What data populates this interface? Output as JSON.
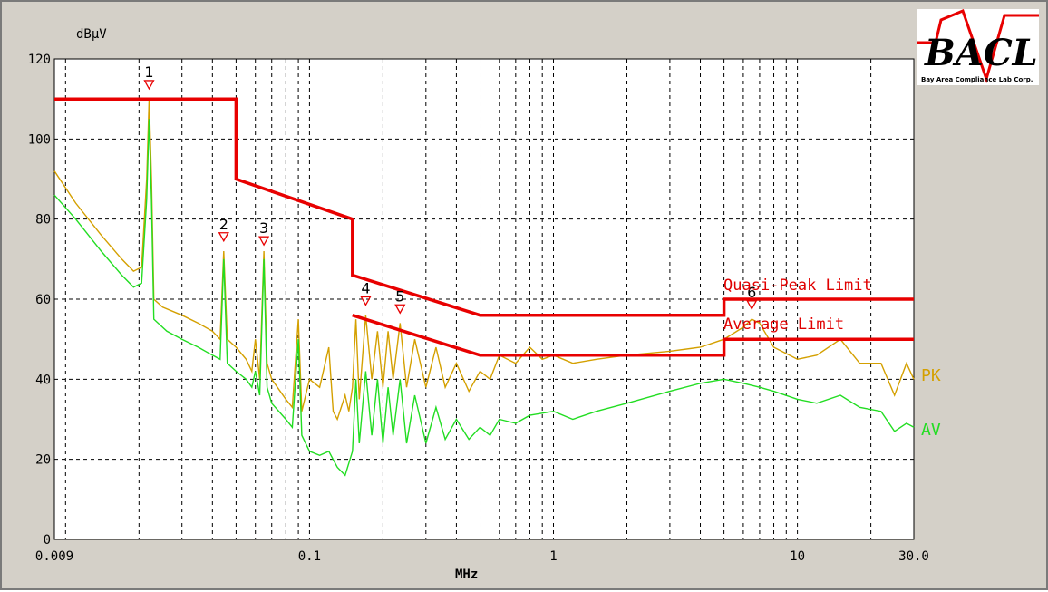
{
  "chart_data": {
    "type": "line",
    "ylabel": "dBμV",
    "xlabel": "MHz",
    "xscale": "log",
    "xlim": [
      0.009,
      30.0
    ],
    "ylim": [
      0,
      120
    ],
    "grid": true,
    "y_ticks": [
      "0",
      "20",
      "40",
      "60",
      "80",
      "100",
      "120"
    ],
    "x_ticks": [
      {
        "value": 0.009,
        "label": "0.009"
      },
      {
        "value": 0.1,
        "label": "0.1"
      },
      {
        "value": 1,
        "label": "1"
      },
      {
        "value": 10,
        "label": "10"
      },
      {
        "value": 30.0,
        "label": "30.0"
      }
    ],
    "series": [
      {
        "name": "Quasi-Peak Limit",
        "color": "#e80000",
        "points": [
          [
            0.009,
            110
          ],
          [
            0.05,
            110
          ],
          [
            0.05,
            90
          ],
          [
            0.15,
            80
          ],
          [
            0.15,
            66
          ],
          [
            0.5,
            56
          ],
          [
            5,
            56
          ],
          [
            5,
            60
          ],
          [
            30,
            60
          ]
        ]
      },
      {
        "name": "Average Limit",
        "color": "#e80000",
        "points": [
          [
            0.15,
            56
          ],
          [
            0.5,
            46
          ],
          [
            5,
            46
          ],
          [
            5,
            50
          ],
          [
            30,
            50
          ]
        ]
      },
      {
        "name": "PK",
        "color": "#d4a000",
        "points": [
          [
            0.009,
            92
          ],
          [
            0.011,
            84
          ],
          [
            0.014,
            76
          ],
          [
            0.017,
            70
          ],
          [
            0.019,
            67
          ],
          [
            0.0205,
            68
          ],
          [
            0.0215,
            90
          ],
          [
            0.022,
            110
          ],
          [
            0.0225,
            90
          ],
          [
            0.023,
            60
          ],
          [
            0.025,
            58
          ],
          [
            0.03,
            56
          ],
          [
            0.035,
            54
          ],
          [
            0.04,
            52
          ],
          [
            0.043,
            50
          ],
          [
            0.0445,
            72
          ],
          [
            0.046,
            50
          ],
          [
            0.05,
            48
          ],
          [
            0.055,
            45
          ],
          [
            0.058,
            42
          ],
          [
            0.06,
            50
          ],
          [
            0.0625,
            40
          ],
          [
            0.065,
            72
          ],
          [
            0.067,
            44
          ],
          [
            0.07,
            40
          ],
          [
            0.08,
            35
          ],
          [
            0.085,
            33
          ],
          [
            0.09,
            55
          ],
          [
            0.093,
            32
          ],
          [
            0.1,
            40
          ],
          [
            0.11,
            38
          ],
          [
            0.12,
            48
          ],
          [
            0.125,
            32
          ],
          [
            0.13,
            30
          ],
          [
            0.14,
            36
          ],
          [
            0.145,
            32
          ],
          [
            0.15,
            38
          ],
          [
            0.155,
            55
          ],
          [
            0.16,
            35
          ],
          [
            0.17,
            56
          ],
          [
            0.18,
            40
          ],
          [
            0.19,
            52
          ],
          [
            0.2,
            38
          ],
          [
            0.21,
            52
          ],
          [
            0.22,
            40
          ],
          [
            0.235,
            54
          ],
          [
            0.25,
            38
          ],
          [
            0.27,
            50
          ],
          [
            0.3,
            38
          ],
          [
            0.33,
            48
          ],
          [
            0.36,
            38
          ],
          [
            0.4,
            44
          ],
          [
            0.45,
            37
          ],
          [
            0.5,
            42
          ],
          [
            0.55,
            40
          ],
          [
            0.6,
            46
          ],
          [
            0.7,
            44
          ],
          [
            0.8,
            48
          ],
          [
            0.9,
            45
          ],
          [
            1,
            46
          ],
          [
            1.2,
            44
          ],
          [
            1.5,
            45
          ],
          [
            2,
            46
          ],
          [
            3,
            47
          ],
          [
            4,
            48
          ],
          [
            5,
            50
          ],
          [
            6,
            53
          ],
          [
            6.5,
            55
          ],
          [
            7,
            54
          ],
          [
            8,
            48
          ],
          [
            10,
            45
          ],
          [
            12,
            46
          ],
          [
            15,
            50
          ],
          [
            18,
            44
          ],
          [
            22,
            44
          ],
          [
            25,
            36
          ],
          [
            28,
            44
          ],
          [
            30,
            40
          ]
        ]
      },
      {
        "name": "AV",
        "color": "#22dd22",
        "points": [
          [
            0.009,
            86
          ],
          [
            0.011,
            80
          ],
          [
            0.014,
            72
          ],
          [
            0.017,
            66
          ],
          [
            0.019,
            63
          ],
          [
            0.0205,
            64
          ],
          [
            0.0215,
            85
          ],
          [
            0.022,
            105
          ],
          [
            0.0225,
            85
          ],
          [
            0.023,
            55
          ],
          [
            0.026,
            52
          ],
          [
            0.03,
            50
          ],
          [
            0.035,
            48
          ],
          [
            0.04,
            46
          ],
          [
            0.043,
            45
          ],
          [
            0.0445,
            70
          ],
          [
            0.046,
            44
          ],
          [
            0.05,
            42
          ],
          [
            0.055,
            40
          ],
          [
            0.058,
            38
          ],
          [
            0.06,
            42
          ],
          [
            0.0625,
            36
          ],
          [
            0.065,
            70
          ],
          [
            0.067,
            38
          ],
          [
            0.07,
            34
          ],
          [
            0.08,
            30
          ],
          [
            0.085,
            28
          ],
          [
            0.09,
            50
          ],
          [
            0.093,
            26
          ],
          [
            0.1,
            22
          ],
          [
            0.11,
            21
          ],
          [
            0.12,
            22
          ],
          [
            0.13,
            18
          ],
          [
            0.14,
            16
          ],
          [
            0.15,
            22
          ],
          [
            0.155,
            40
          ],
          [
            0.16,
            24
          ],
          [
            0.17,
            42
          ],
          [
            0.18,
            26
          ],
          [
            0.19,
            40
          ],
          [
            0.2,
            24
          ],
          [
            0.21,
            38
          ],
          [
            0.22,
            26
          ],
          [
            0.235,
            40
          ],
          [
            0.25,
            24
          ],
          [
            0.27,
            36
          ],
          [
            0.3,
            24
          ],
          [
            0.33,
            33
          ],
          [
            0.36,
            25
          ],
          [
            0.4,
            30
          ],
          [
            0.45,
            25
          ],
          [
            0.5,
            28
          ],
          [
            0.55,
            26
          ],
          [
            0.6,
            30
          ],
          [
            0.7,
            29
          ],
          [
            0.8,
            31
          ],
          [
            1,
            32
          ],
          [
            1.2,
            30
          ],
          [
            1.5,
            32
          ],
          [
            2,
            34
          ],
          [
            3,
            37
          ],
          [
            4,
            39
          ],
          [
            5,
            40
          ],
          [
            6,
            39
          ],
          [
            7,
            38
          ],
          [
            8,
            37
          ],
          [
            10,
            35
          ],
          [
            12,
            34
          ],
          [
            15,
            36
          ],
          [
            18,
            33
          ],
          [
            22,
            32
          ],
          [
            25,
            27
          ],
          [
            28,
            29
          ],
          [
            30,
            28
          ]
        ]
      }
    ],
    "markers": [
      {
        "label": "1",
        "x": 0.022,
        "y": 113
      },
      {
        "label": "2",
        "x": 0.0445,
        "y": 75
      },
      {
        "label": "3",
        "x": 0.065,
        "y": 74
      },
      {
        "label": "4",
        "x": 0.17,
        "y": 59
      },
      {
        "label": "5",
        "x": 0.235,
        "y": 57
      },
      {
        "label": "6",
        "x": 6.5,
        "y": 58
      }
    ],
    "annotations": [
      {
        "text": "Quasi-Peak Limit",
        "color": "#e80000"
      },
      {
        "text": "Average Limit",
        "color": "#e80000"
      }
    ],
    "series_labels": [
      {
        "text": "PK",
        "color": "#d4a000"
      },
      {
        "text": "AV",
        "color": "#22dd22"
      }
    ]
  },
  "logo": {
    "text": "BACL",
    "subtitle": "Bay Area Compliance Lab Corp."
  }
}
